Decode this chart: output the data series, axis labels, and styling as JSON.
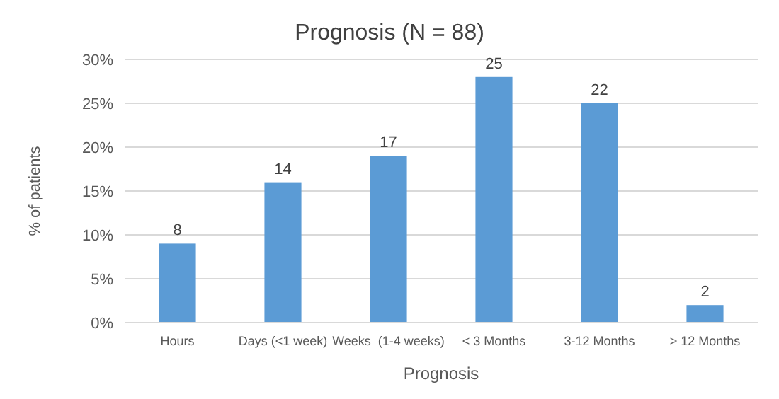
{
  "chart_data": {
    "type": "bar",
    "title": "Prognosis (N = 88)",
    "xlabel": "Prognosis",
    "ylabel": "% of patients",
    "categories": [
      "Hours",
      "Days (<1 week)",
      "Weeks  (1-4 weeks)",
      "< 3 Months",
      "3-12 Months",
      "> 12 Months"
    ],
    "values": [
      9,
      16,
      19,
      28,
      25,
      2
    ],
    "annotations": [
      {
        "text": "8",
        "x": "Hours",
        "y": 9
      },
      {
        "text": "14",
        "x": "Days (<1 week)",
        "y": 16
      },
      {
        "text": "17",
        "x": "Weeks  (1-4 weeks)",
        "y": 19
      },
      {
        "text": "25",
        "x": "< 3 Months",
        "y": 28
      },
      {
        "text": "22",
        "x": "3-12 Months",
        "y": 25
      },
      {
        "text": "2",
        "x": "> 12 Months",
        "y": 2
      }
    ],
    "color": "#5b9bd5",
    "ylim": [
      0,
      30
    ],
    "yticks": [
      {
        "value": 0,
        "label": "0%"
      },
      {
        "value": 5,
        "label": "5%"
      },
      {
        "value": 10,
        "label": "10%"
      },
      {
        "value": 15,
        "label": "15%"
      },
      {
        "value": 20,
        "label": "20%"
      },
      {
        "value": 25,
        "label": "25%"
      },
      {
        "value": 30,
        "label": "30%"
      }
    ],
    "grid": "y"
  }
}
